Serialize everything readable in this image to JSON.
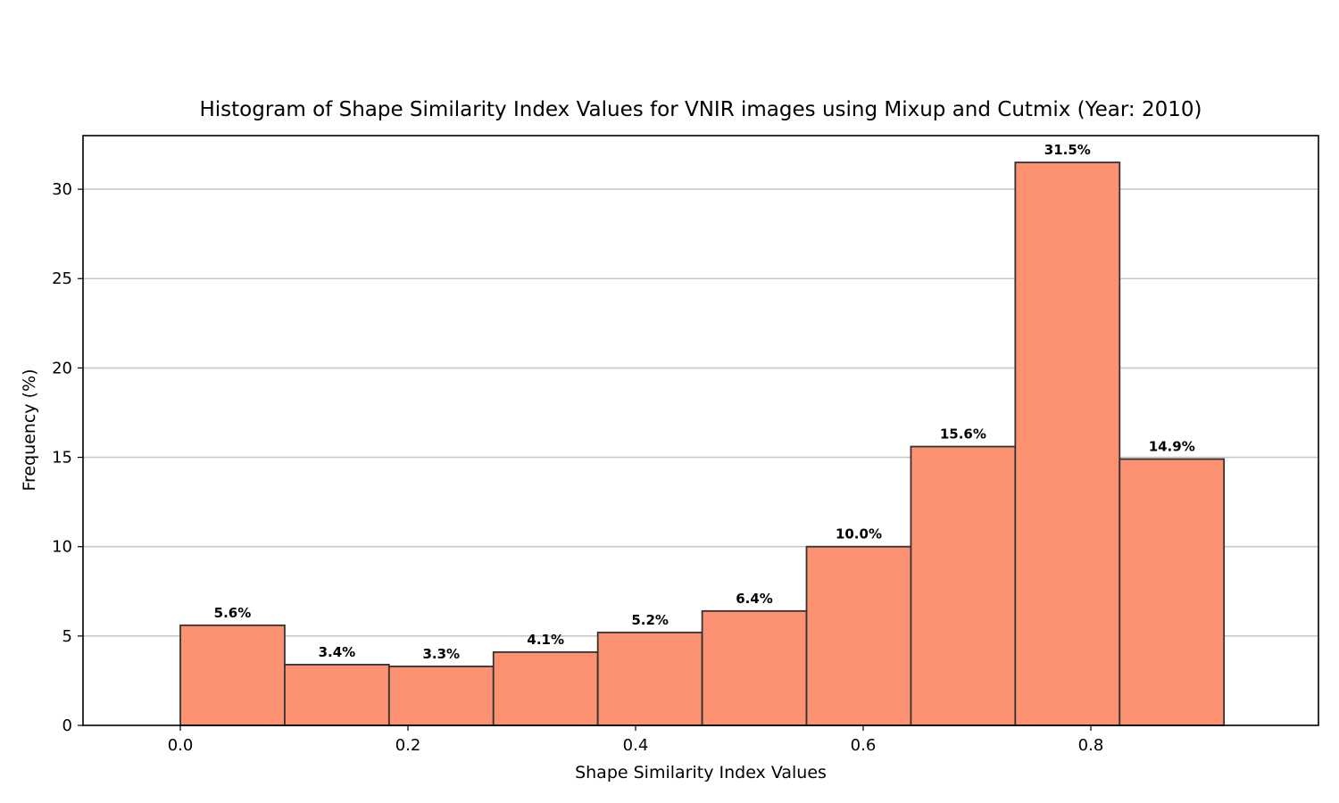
{
  "chart_data": {
    "type": "bar",
    "title": "Histogram of Shape Similarity Index Values for VNIR images using Mixup and Cutmix (Year: 2010)",
    "xlabel": "Shape Similarity Index Values",
    "ylabel": "Frequency (%)",
    "bin_edges": [
      0.0,
      0.0917,
      0.1834,
      0.2751,
      0.3668,
      0.4585,
      0.5502,
      0.6419,
      0.7336,
      0.8253,
      0.917
    ],
    "values": [
      5.6,
      3.4,
      3.3,
      4.1,
      5.2,
      6.4,
      10.0,
      15.6,
      31.5,
      14.9
    ],
    "value_labels": [
      "5.6%",
      "3.4%",
      "3.3%",
      "4.1%",
      "5.2%",
      "6.4%",
      "10.0%",
      "15.6%",
      "31.5%",
      "14.9%"
    ],
    "xlim": [
      -0.0855,
      1.0
    ],
    "ylim": [
      0,
      33
    ],
    "xticks": [
      0.0,
      0.2,
      0.4,
      0.6,
      0.8
    ],
    "xtick_labels": [
      "0.0",
      "0.2",
      "0.4",
      "0.6",
      "0.8"
    ],
    "yticks": [
      0,
      5,
      10,
      15,
      20,
      25,
      30
    ],
    "ytick_labels": [
      "0",
      "5",
      "10",
      "15",
      "20",
      "25",
      "30"
    ],
    "grid": "y",
    "bar_color": "#fc9272",
    "edge_color": "#333333"
  }
}
